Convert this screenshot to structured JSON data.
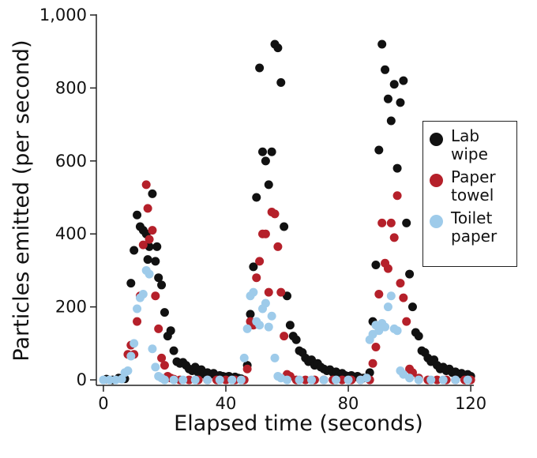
{
  "chart_data": {
    "type": "scatter",
    "x_label": "Elapsed time (seconds)",
    "y_label": "Particles emitted (per second)",
    "xlim": [
      -2.3,
      121
    ],
    "ylim": [
      -15,
      1000
    ],
    "xticks": [
      0,
      40,
      80,
      120
    ],
    "yticks": [
      0,
      200,
      400,
      600,
      800,
      {
        "value": 1000,
        "label": "1,000"
      }
    ],
    "legend": "right",
    "series": [
      {
        "name": "Lab wipe",
        "color": "#111111",
        "x": [
          1,
          3,
          5,
          7,
          9,
          10,
          11,
          12,
          13,
          14,
          14.5,
          15,
          16,
          17,
          17.5,
          18,
          19,
          20,
          21,
          22,
          23,
          24,
          25,
          26,
          27,
          28,
          29,
          30,
          31,
          32,
          33,
          34,
          35,
          36,
          37,
          38,
          39,
          40,
          41,
          42,
          43,
          44,
          45,
          47,
          48,
          49,
          50,
          51,
          52,
          53,
          54,
          55,
          56,
          57,
          58,
          59,
          60,
          61,
          62,
          63,
          64,
          65,
          66,
          67,
          68,
          69,
          70,
          71,
          72,
          73,
          74,
          75,
          76,
          77,
          78,
          79,
          80,
          81,
          82,
          83,
          84,
          85,
          87,
          88,
          89,
          90,
          91,
          92,
          93,
          94,
          95,
          96,
          97,
          98,
          99,
          100,
          101,
          102,
          103,
          104,
          105,
          106,
          107,
          108,
          109,
          110,
          111,
          112,
          113,
          114,
          115,
          116,
          117,
          118,
          119,
          120
        ],
        "values": [
          2,
          0,
          5,
          3,
          265,
          355,
          452,
          420,
          410,
          400,
          330,
          365,
          510,
          325,
          365,
          280,
          260,
          185,
          120,
          135,
          80,
          50,
          45,
          48,
          40,
          30,
          25,
          35,
          20,
          28,
          15,
          20,
          15,
          18,
          10,
          12,
          10,
          8,
          10,
          5,
          8,
          5,
          3,
          40,
          180,
          310,
          500,
          855,
          625,
          600,
          535,
          625,
          920,
          910,
          815,
          420,
          230,
          150,
          120,
          110,
          80,
          75,
          60,
          50,
          55,
          40,
          45,
          35,
          30,
          25,
          28,
          20,
          22,
          15,
          18,
          12,
          10,
          12,
          8,
          10,
          5,
          5,
          20,
          160,
          315,
          630,
          920,
          850,
          770,
          710,
          810,
          580,
          760,
          820,
          430,
          290,
          200,
          130,
          120,
          80,
          75,
          60,
          50,
          55,
          40,
          30,
          35,
          25,
          30,
          20,
          22,
          15,
          18,
          12,
          15,
          10
        ]
      },
      {
        "name": "Paper towel",
        "color": "#b5202a",
        "x": [
          8,
          9,
          10,
          11,
          12,
          13,
          14,
          14.5,
          15,
          16,
          17,
          18,
          19,
          20,
          21,
          22,
          23,
          25,
          28,
          31,
          34,
          37,
          40,
          43,
          46,
          47,
          48,
          49,
          50,
          51,
          52,
          53,
          54,
          55,
          56,
          57,
          58,
          59,
          60,
          61,
          63,
          66,
          69,
          72,
          75,
          78,
          81,
          84,
          87,
          88,
          89,
          90,
          91,
          92,
          93,
          94,
          95,
          96,
          97,
          98,
          99,
          100,
          101,
          103,
          106,
          109,
          112,
          115,
          118,
          120
        ],
        "values": [
          70,
          95,
          70,
          160,
          230,
          370,
          535,
          470,
          385,
          410,
          230,
          140,
          60,
          40,
          10,
          5,
          2,
          0,
          0,
          0,
          0,
          0,
          0,
          0,
          0,
          30,
          160,
          150,
          280,
          325,
          400,
          400,
          240,
          460,
          455,
          365,
          240,
          120,
          15,
          10,
          0,
          0,
          0,
          0,
          0,
          0,
          0,
          0,
          0,
          45,
          90,
          235,
          430,
          320,
          305,
          430,
          390,
          505,
          265,
          225,
          160,
          30,
          20,
          5,
          0,
          0,
          0,
          0,
          0,
          0
        ]
      },
      {
        "name": "Toilet paper",
        "color": "#9ecbea",
        "x": [
          0,
          2,
          4,
          6,
          7,
          8,
          9,
          10,
          11,
          12,
          13,
          14,
          15,
          16,
          17,
          18,
          19,
          20,
          23,
          26,
          30,
          34,
          38,
          42,
          45,
          46,
          47,
          48,
          49,
          50,
          51,
          52,
          53,
          54,
          55,
          56,
          57,
          58,
          60,
          64,
          68,
          72,
          76,
          80,
          84,
          86,
          87,
          88,
          89,
          90,
          91,
          92,
          93,
          94,
          95,
          96,
          97,
          98,
          100,
          103,
          107,
          111,
          115,
          119
        ],
        "values": [
          0,
          0,
          0,
          2,
          20,
          25,
          65,
          100,
          195,
          225,
          235,
          300,
          290,
          85,
          35,
          10,
          5,
          0,
          0,
          0,
          0,
          0,
          0,
          0,
          0,
          60,
          140,
          230,
          240,
          160,
          150,
          195,
          210,
          145,
          175,
          60,
          10,
          5,
          0,
          0,
          0,
          0,
          0,
          0,
          0,
          5,
          110,
          125,
          150,
          135,
          155,
          145,
          200,
          230,
          140,
          135,
          25,
          15,
          5,
          0,
          0,
          0,
          0,
          0
        ]
      }
    ]
  }
}
